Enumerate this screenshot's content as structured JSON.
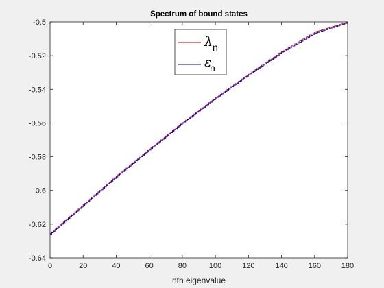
{
  "chart_data": {
    "type": "line",
    "title": "Spectrum of bound states",
    "xlabel": "nth eigenvalue",
    "ylabel": "",
    "xlim": [
      0,
      180
    ],
    "ylim": [
      -0.64,
      -0.5
    ],
    "xticks": [
      0,
      20,
      40,
      60,
      80,
      100,
      120,
      140,
      160,
      180
    ],
    "yticks": [
      -0.64,
      -0.62,
      -0.6,
      -0.58,
      -0.56,
      -0.54,
      -0.52,
      -0.5
    ],
    "xtick_labels": [
      "0",
      "20",
      "40",
      "60",
      "80",
      "100",
      "120",
      "140",
      "160",
      "180"
    ],
    "ytick_labels": [
      "-0.64",
      "-0.62",
      "-0.6",
      "-0.58",
      "-0.56",
      "-0.54",
      "-0.52",
      "-0.5"
    ],
    "grid": false,
    "legend_position": "top-center",
    "series": [
      {
        "name": "λ",
        "subscript": "n",
        "color": "#c0000a",
        "x": [
          0,
          20,
          40,
          60,
          80,
          100,
          120,
          140,
          160,
          180
        ],
        "y": [
          -0.6255,
          -0.6085,
          -0.5915,
          -0.5755,
          -0.5598,
          -0.545,
          -0.531,
          -0.5177,
          -0.506,
          -0.5
        ]
      },
      {
        "name": "ε",
        "subscript": "n",
        "color": "#0000cc",
        "x": [
          0,
          20,
          40,
          60,
          80,
          100,
          120,
          140,
          160,
          180
        ],
        "y": [
          -0.626,
          -0.609,
          -0.592,
          -0.576,
          -0.5602,
          -0.5455,
          -0.5315,
          -0.5183,
          -0.5068,
          -0.5005
        ]
      }
    ]
  }
}
